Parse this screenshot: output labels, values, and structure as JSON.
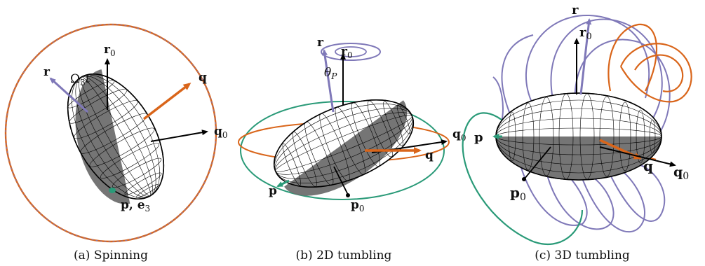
{
  "colors": {
    "purple": "#7f78b8",
    "orange": "#d9651a",
    "green": "#2a9a78",
    "shade": "#6e6e6e",
    "black": "#000000"
  },
  "panels": [
    {
      "caption": "(a) Spinning",
      "labels": {
        "r": "r",
        "r0": "r",
        "r0_sub": "0",
        "q": "q",
        "q0": "q",
        "q0_sub": "0",
        "pe3": "p, e",
        "pe3_sub": "3",
        "omega": "Ω",
        "omega_sub": "3",
        "omega_t": "t"
      }
    },
    {
      "caption": "(b) 2D tumbling",
      "labels": {
        "r": "r",
        "r0": "r",
        "r0_sub": "0",
        "q": "q",
        "q0": "q",
        "q0_sub": "0",
        "p": "p",
        "p0": "p",
        "p0_sub": "0",
        "theta": "θ",
        "theta_sub": "P"
      }
    },
    {
      "caption": "(c) 3D tumbling",
      "labels": {
        "r": "r",
        "r0": "r",
        "r0_sub": "0",
        "q": "q",
        "q0": "q",
        "q0_sub": "0",
        "p": "p",
        "p0": "p",
        "p0_sub": "0"
      }
    }
  ]
}
